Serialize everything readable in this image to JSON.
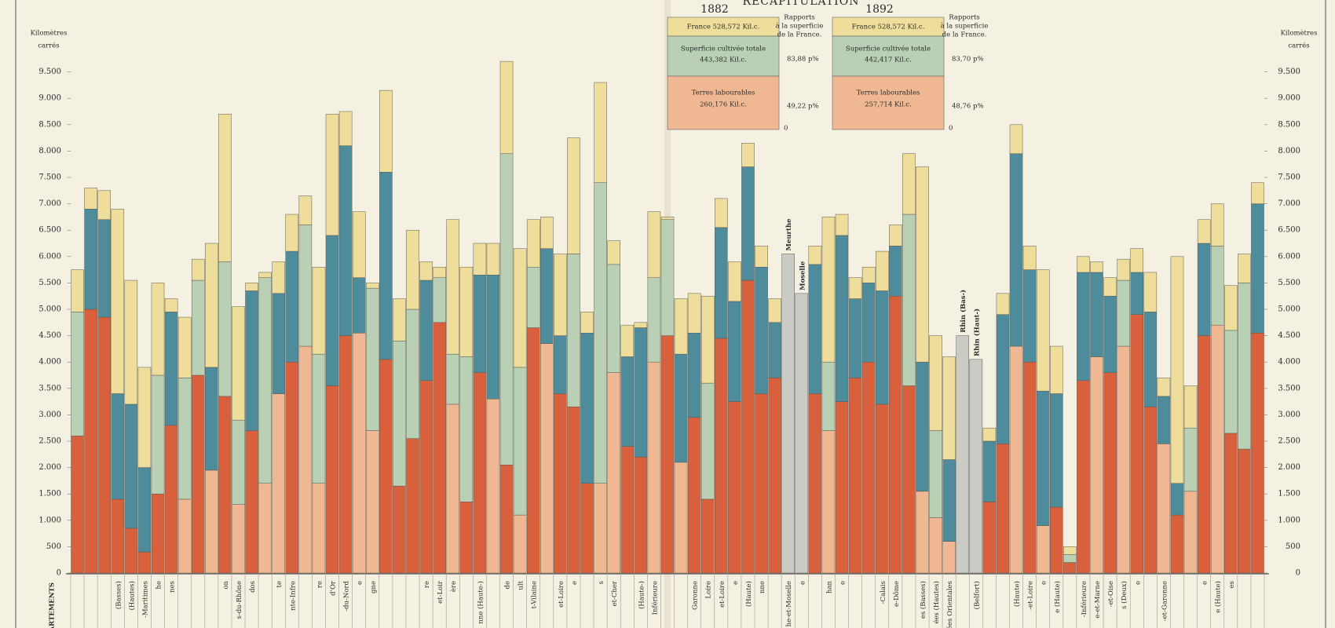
{
  "chart_data": {
    "type": "stacked-bar",
    "title": "RÉCAPITULATION",
    "y_label_lines": [
      "Kilomètres",
      "carrés"
    ],
    "section_label": "DÉPARTEMENTS",
    "ylim": [
      0,
      10000
    ],
    "yticks": [
      0,
      500,
      {
        "value": 1000,
        "label": "1.000"
      },
      {
        "value": 1500,
        "label": "1.500"
      },
      {
        "value": 2000,
        "label": "2.000"
      },
      {
        "value": 2500,
        "label": "2.500"
      },
      {
        "value": 3000,
        "label": "3.000"
      },
      {
        "value": 3500,
        "label": "3.500"
      },
      {
        "value": 4000,
        "label": "4.000"
      },
      {
        "value": 4500,
        "label": "4.500"
      },
      {
        "value": 5000,
        "label": "5.000"
      },
      {
        "value": 5500,
        "label": "5.500"
      },
      {
        "value": 6000,
        "label": "6.000"
      },
      {
        "value": 6500,
        "label": "6.500"
      },
      {
        "value": 7000,
        "label": "7.000"
      },
      {
        "value": 7500,
        "label": "7.500"
      },
      {
        "value": 8000,
        "label": "8.000"
      },
      {
        "value": 8500,
        "label": "8.500"
      },
      {
        "value": 9000,
        "label": "9.000"
      },
      {
        "value": 9500,
        "label": "9.500"
      }
    ],
    "categories": [
      null,
      null,
      null,
      "(Basses)",
      "(Hautes)",
      "-Maritimes",
      "he",
      "nes",
      null,
      null,
      null,
      "on",
      "s-du-Rhône",
      "dos",
      null,
      "te",
      "nte-Infre",
      null,
      "re",
      "d'Or",
      "-du-Nord",
      "e",
      "gne",
      null,
      null,
      null,
      "re",
      "et-Loir",
      "ère",
      null,
      "nne (Haute-)",
      null,
      "de",
      "ult",
      "t-Vilaine",
      null,
      "et-Loire",
      "e",
      null,
      "s",
      "et-Cher",
      null,
      "(Haute-)",
      "Inférieure",
      null,
      null,
      "Garonne",
      "Loire",
      "et-Loire",
      "e",
      "(Haute)",
      "nne",
      null,
      "he-et-Moselle",
      "e",
      null,
      "han",
      "e",
      null,
      null,
      "-Calais",
      "e-Dôme",
      null,
      "es (Basses)",
      "ées (Hautes)",
      "ées Orientales",
      null,
      "(Belfort)",
      null,
      null,
      "(Haute)",
      "-et-Loire",
      "e",
      "e (Haute)",
      null,
      "-Inférieure",
      "e-et-Marne",
      "-et-Oise",
      "s (Deux)",
      "e",
      null,
      "-et-Garonne",
      null,
      null,
      "e",
      "e (Haute)",
      "es",
      null,
      null
    ],
    "top_labels": [
      null,
      null,
      null,
      null,
      null,
      null,
      null,
      null,
      null,
      null,
      null,
      null,
      null,
      null,
      null,
      null,
      null,
      null,
      null,
      null,
      null,
      null,
      null,
      null,
      null,
      null,
      null,
      null,
      null,
      null,
      null,
      null,
      null,
      null,
      null,
      null,
      null,
      null,
      null,
      null,
      null,
      null,
      null,
      null,
      null,
      null,
      null,
      null,
      null,
      null,
      null,
      null,
      null,
      "Meurthe",
      "Moselle",
      null,
      null,
      null,
      null,
      null,
      null,
      null,
      null,
      null,
      null,
      null,
      "Rhin (Bas-)",
      "Rhin (Haut-)",
      null,
      null,
      null,
      null,
      null,
      null,
      null,
      null,
      null,
      null,
      null,
      null,
      null,
      null,
      null,
      null,
      null,
      null,
      null,
      null,
      null
    ],
    "series": [
      {
        "values": [
          2600,
          5000,
          4850,
          1400,
          850,
          400,
          1500,
          2800,
          1400,
          3750,
          1950,
          3350,
          1300,
          2700,
          1700,
          3400,
          4000,
          4300,
          1700,
          3550,
          4500,
          4550,
          2700,
          4050,
          1650,
          2550,
          3650,
          4750,
          3200,
          1350,
          3800,
          3300,
          2050,
          1100,
          4650,
          4350,
          3400,
          3150,
          1700,
          1700,
          3800,
          2400,
          2200,
          4000,
          4500,
          2100,
          2950,
          1400,
          4450,
          3250,
          5550,
          3400,
          3700,
          null,
          null,
          3400,
          2700,
          3250,
          3700,
          4000,
          3200,
          5250,
          3550,
          1550,
          1050,
          600,
          null,
          null,
          1350,
          2450,
          4300,
          4000,
          900,
          1250,
          200,
          3650,
          4100,
          3800,
          4300,
          4900,
          3150,
          2450,
          1100,
          1550,
          4500,
          4700,
          2650,
          2350,
          4550
        ],
        "colors": [
          "#d8603c",
          "#d8603c",
          "#d8603c",
          "#d8603c",
          "#d8603c",
          "#d8603c",
          "#d8603c",
          "#d8603c",
          "#f0b892",
          "#d8603c",
          "#f0b892",
          "#d8603c",
          "#f0b892",
          "#d8603c",
          "#f0b892",
          "#f0b892",
          "#d8603c",
          "#f0b892",
          "#f0b892",
          "#d8603c",
          "#d8603c",
          "#f0b892",
          "#f0b892",
          "#d8603c",
          "#d8603c",
          "#d8603c",
          "#d8603c",
          "#d8603c",
          "#f0b892",
          "#d8603c",
          "#d8603c",
          "#f0b892",
          "#d8603c",
          "#f0b892",
          "#d8603c",
          "#f0b892",
          "#d8603c",
          "#d8603c",
          "#d8603c",
          "#f0b892",
          "#f0b892",
          "#d8603c",
          "#d8603c",
          "#f0b892",
          "#d8603c",
          "#f0b892",
          "#d8603c",
          "#d8603c",
          "#d8603c",
          "#d8603c",
          "#d8603c",
          "#d8603c",
          "#d8603c",
          null,
          null,
          "#d8603c",
          "#f0b892",
          "#d8603c",
          "#d8603c",
          "#d8603c",
          "#d8603c",
          "#d8603c",
          "#d8603c",
          "#f0b892",
          "#f0b892",
          "#f0b892",
          null,
          null,
          "#d8603c",
          "#d8603c",
          "#f0b892",
          "#d8603c",
          "#f0b892",
          "#d8603c",
          "#d8603c",
          "#d8603c",
          "#f0b892",
          "#d8603c",
          "#f0b892",
          "#d8603c",
          "#d8603c",
          "#f0b892",
          "#d8603c",
          "#f0b892",
          "#d8603c",
          "#f0b892",
          "#d8603c",
          "#d8603c",
          "#d8603c"
        ]
      },
      {
        "values": [
          2350,
          1900,
          1850,
          2000,
          2350,
          1600,
          2250,
          2150,
          2300,
          1800,
          1950,
          2550,
          1600,
          2650,
          3900,
          1900,
          2100,
          2300,
          2450,
          2850,
          3600,
          1050,
          2700,
          3550,
          2750,
          2450,
          1900,
          850,
          950,
          2750,
          1850,
          2350,
          5900,
          2800,
          1150,
          1800,
          1100,
          2900,
          2850,
          5700,
          2050,
          1700,
          2450,
          1600,
          2200,
          2050,
          1600,
          2200,
          2100,
          1900,
          2150,
          2400,
          1050,
          null,
          null,
          2450,
          1300,
          3150,
          1500,
          1500,
          2150,
          950,
          3250,
          2450,
          1650,
          1550,
          null,
          null,
          1150,
          2450,
          3650,
          1750,
          2550,
          2150,
          150,
          2050,
          1600,
          1450,
          1250,
          800,
          1800,
          900,
          600,
          1200,
          1750,
          1500,
          1950,
          3150,
          2450
        ],
        "colors": [
          "#b9d0b4",
          "#4e8c9c",
          "#4e8c9c",
          "#4e8c9c",
          "#4e8c9c",
          "#4e8c9c",
          "#b9d0b4",
          "#4e8c9c",
          "#b9d0b4",
          "#b9d0b4",
          "#4e8c9c",
          "#b9d0b4",
          "#b9d0b4",
          "#4e8c9c",
          "#b9d0b4",
          "#4e8c9c",
          "#4e8c9c",
          "#b9d0b4",
          "#b9d0b4",
          "#4e8c9c",
          "#4e8c9c",
          "#4e8c9c",
          "#b9d0b4",
          "#4e8c9c",
          "#b9d0b4",
          "#b9d0b4",
          "#4e8c9c",
          "#b9d0b4",
          "#b9d0b4",
          "#b9d0b4",
          "#4e8c9c",
          "#4e8c9c",
          "#b9d0b4",
          "#b9d0b4",
          "#b9d0b4",
          "#4e8c9c",
          "#4e8c9c",
          "#b9d0b4",
          "#4e8c9c",
          "#b9d0b4",
          "#b9d0b4",
          "#4e8c9c",
          "#4e8c9c",
          "#b9d0b4",
          "#b9d0b4",
          "#4e8c9c",
          "#4e8c9c",
          "#b9d0b4",
          "#4e8c9c",
          "#4e8c9c",
          "#4e8c9c",
          "#4e8c9c",
          "#4e8c9c",
          null,
          null,
          "#4e8c9c",
          "#b9d0b4",
          "#4e8c9c",
          "#4e8c9c",
          "#4e8c9c",
          "#4e8c9c",
          "#4e8c9c",
          "#b9d0b4",
          "#4e8c9c",
          "#b9d0b4",
          "#4e8c9c",
          null,
          null,
          "#4e8c9c",
          "#4e8c9c",
          "#4e8c9c",
          "#4e8c9c",
          "#4e8c9c",
          "#4e8c9c",
          "#b9d0b4",
          "#4e8c9c",
          "#4e8c9c",
          "#4e8c9c",
          "#b9d0b4",
          "#4e8c9c",
          "#4e8c9c",
          "#4e8c9c",
          "#4e8c9c",
          "#b9d0b4",
          "#4e8c9c",
          "#b9d0b4",
          "#b9d0b4",
          "#b9d0b4",
          "#4e8c9c"
        ]
      },
      {
        "values": [
          800,
          400,
          550,
          3500,
          2350,
          1900,
          1750,
          250,
          1150,
          400,
          2350,
          2800,
          2150,
          150,
          100,
          600,
          700,
          550,
          1650,
          2300,
          650,
          1250,
          100,
          1550,
          800,
          1500,
          350,
          200,
          2550,
          1700,
          600,
          600,
          1750,
          2250,
          900,
          600,
          1550,
          2200,
          400,
          1900,
          450,
          600,
          100,
          1250,
          50,
          1050,
          750,
          1650,
          550,
          750,
          450,
          400,
          450,
          null,
          null,
          350,
          2750,
          400,
          400,
          300,
          750,
          400,
          1150,
          3700,
          1800,
          1950,
          null,
          null,
          250,
          400,
          550,
          450,
          2300,
          900,
          150,
          300,
          200,
          350,
          400,
          450,
          750,
          350,
          4300,
          800,
          450,
          800,
          850,
          550,
          400
        ],
        "color": "#eedd9b"
      },
      {
        "values": [
          null,
          null,
          null,
          null,
          null,
          null,
          null,
          null,
          null,
          null,
          null,
          null,
          null,
          null,
          null,
          null,
          null,
          null,
          null,
          null,
          null,
          null,
          null,
          null,
          null,
          null,
          null,
          null,
          null,
          null,
          null,
          null,
          null,
          null,
          null,
          null,
          null,
          null,
          null,
          null,
          null,
          null,
          null,
          null,
          null,
          null,
          null,
          null,
          null,
          null,
          null,
          null,
          null,
          6050,
          5300,
          null,
          null,
          null,
          null,
          null,
          null,
          null,
          null,
          null,
          null,
          null,
          4500,
          4050,
          null,
          null,
          null,
          null,
          null,
          null,
          null,
          null,
          null,
          null,
          null,
          null,
          null,
          null,
          null,
          null,
          null,
          null,
          null,
          null,
          null
        ],
        "color": "#cbcbc6"
      }
    ],
    "recap": [
      {
        "year": "1882",
        "france": "France 528,572 Kil.c.",
        "cultivated_label": "Superficie cultivée totale",
        "cultivated_value": "443,382 Kil.c.",
        "cultivated_pct": "83,88 p%",
        "arable_label": "Terres labourables",
        "arable_value": "260,176 Kil.c.",
        "arable_pct": "49,22 p%",
        "zero": "0",
        "ratio_note": [
          "Rapports",
          "à la superficie",
          "de la France."
        ]
      },
      {
        "year": "1892",
        "france": "France 528,572 Kil.c.",
        "cultivated_label": "Superficie cultivée totale",
        "cultivated_value": "442,417 Kil.c.",
        "cultivated_pct": "83,70 p%",
        "arable_label": "Terres labourables",
        "arable_value": "257,714 Kil.c.",
        "arable_pct": "48,76 p%",
        "zero": "0",
        "ratio_note": [
          "Rapports",
          "à la superficie",
          "de la France."
        ]
      }
    ]
  }
}
